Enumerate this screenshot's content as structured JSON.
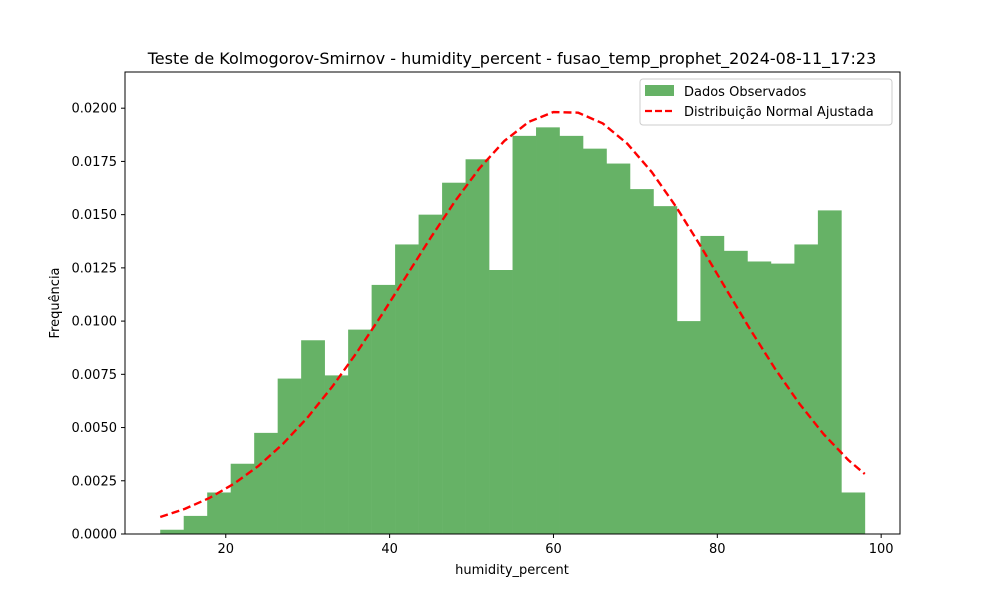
{
  "chart_data": {
    "type": "bar",
    "title": "Teste de Kolmogorov-Smirnov - humidity_percent - fusao_temp_prophet_2024-08-11_17:23",
    "xlabel": "humidity_percent",
    "ylabel": "Frequência",
    "xlim": [
      7.7,
      102.3
    ],
    "ylim": [
      0,
      0.0217
    ],
    "xticks": [
      20,
      40,
      60,
      80,
      100
    ],
    "xtick_labels": [
      "20",
      "40",
      "60",
      "80",
      "100"
    ],
    "yticks": [
      0,
      0.0025,
      0.005,
      0.0075,
      0.01,
      0.0125,
      0.015,
      0.0175,
      0.02
    ],
    "ytick_labels": [
      "0.0000",
      "0.0025",
      "0.0050",
      "0.0075",
      "0.0100",
      "0.0125",
      "0.0150",
      "0.0175",
      "0.0200"
    ],
    "histogram": {
      "name": "Dados Observados",
      "color": "#66b266",
      "bin_start": 12.0,
      "bin_width": 2.867,
      "values": [
        0.0002,
        0.00085,
        0.00195,
        0.0033,
        0.00475,
        0.0073,
        0.0091,
        0.00745,
        0.0096,
        0.0117,
        0.0136,
        0.015,
        0.0165,
        0.0176,
        0.0124,
        0.0187,
        0.0191,
        0.0187,
        0.0181,
        0.0174,
        0.0162,
        0.0154,
        0.01,
        0.014,
        0.0133,
        0.0128,
        0.0127,
        0.0136,
        0.0152,
        0.00195
      ]
    },
    "fit_line": {
      "name": "Distribuição Normal Ajustada",
      "color": "#ff0000",
      "x": [
        12,
        15,
        18,
        21,
        24,
        27,
        30,
        33,
        36,
        39,
        42,
        45,
        48,
        51,
        54,
        57,
        60,
        63,
        66,
        69,
        72,
        75,
        78,
        81,
        84,
        87,
        90,
        93,
        96,
        98
      ],
      "y": [
        0.0008,
        0.00118,
        0.00169,
        0.00236,
        0.0032,
        0.00424,
        0.00548,
        0.00692,
        0.00853,
        0.01027,
        0.01209,
        0.01391,
        0.01564,
        0.01719,
        0.01846,
        0.01936,
        0.01982,
        0.01979,
        0.01929,
        0.01834,
        0.017,
        0.01535,
        0.0135,
        0.01155,
        0.00962,
        0.00779,
        0.00613,
        0.00468,
        0.00347,
        0.00282
      ]
    },
    "legend": {
      "position": "top-right",
      "entries": [
        "Dados Observados",
        "Distribuição Normal Ajustada"
      ]
    }
  }
}
